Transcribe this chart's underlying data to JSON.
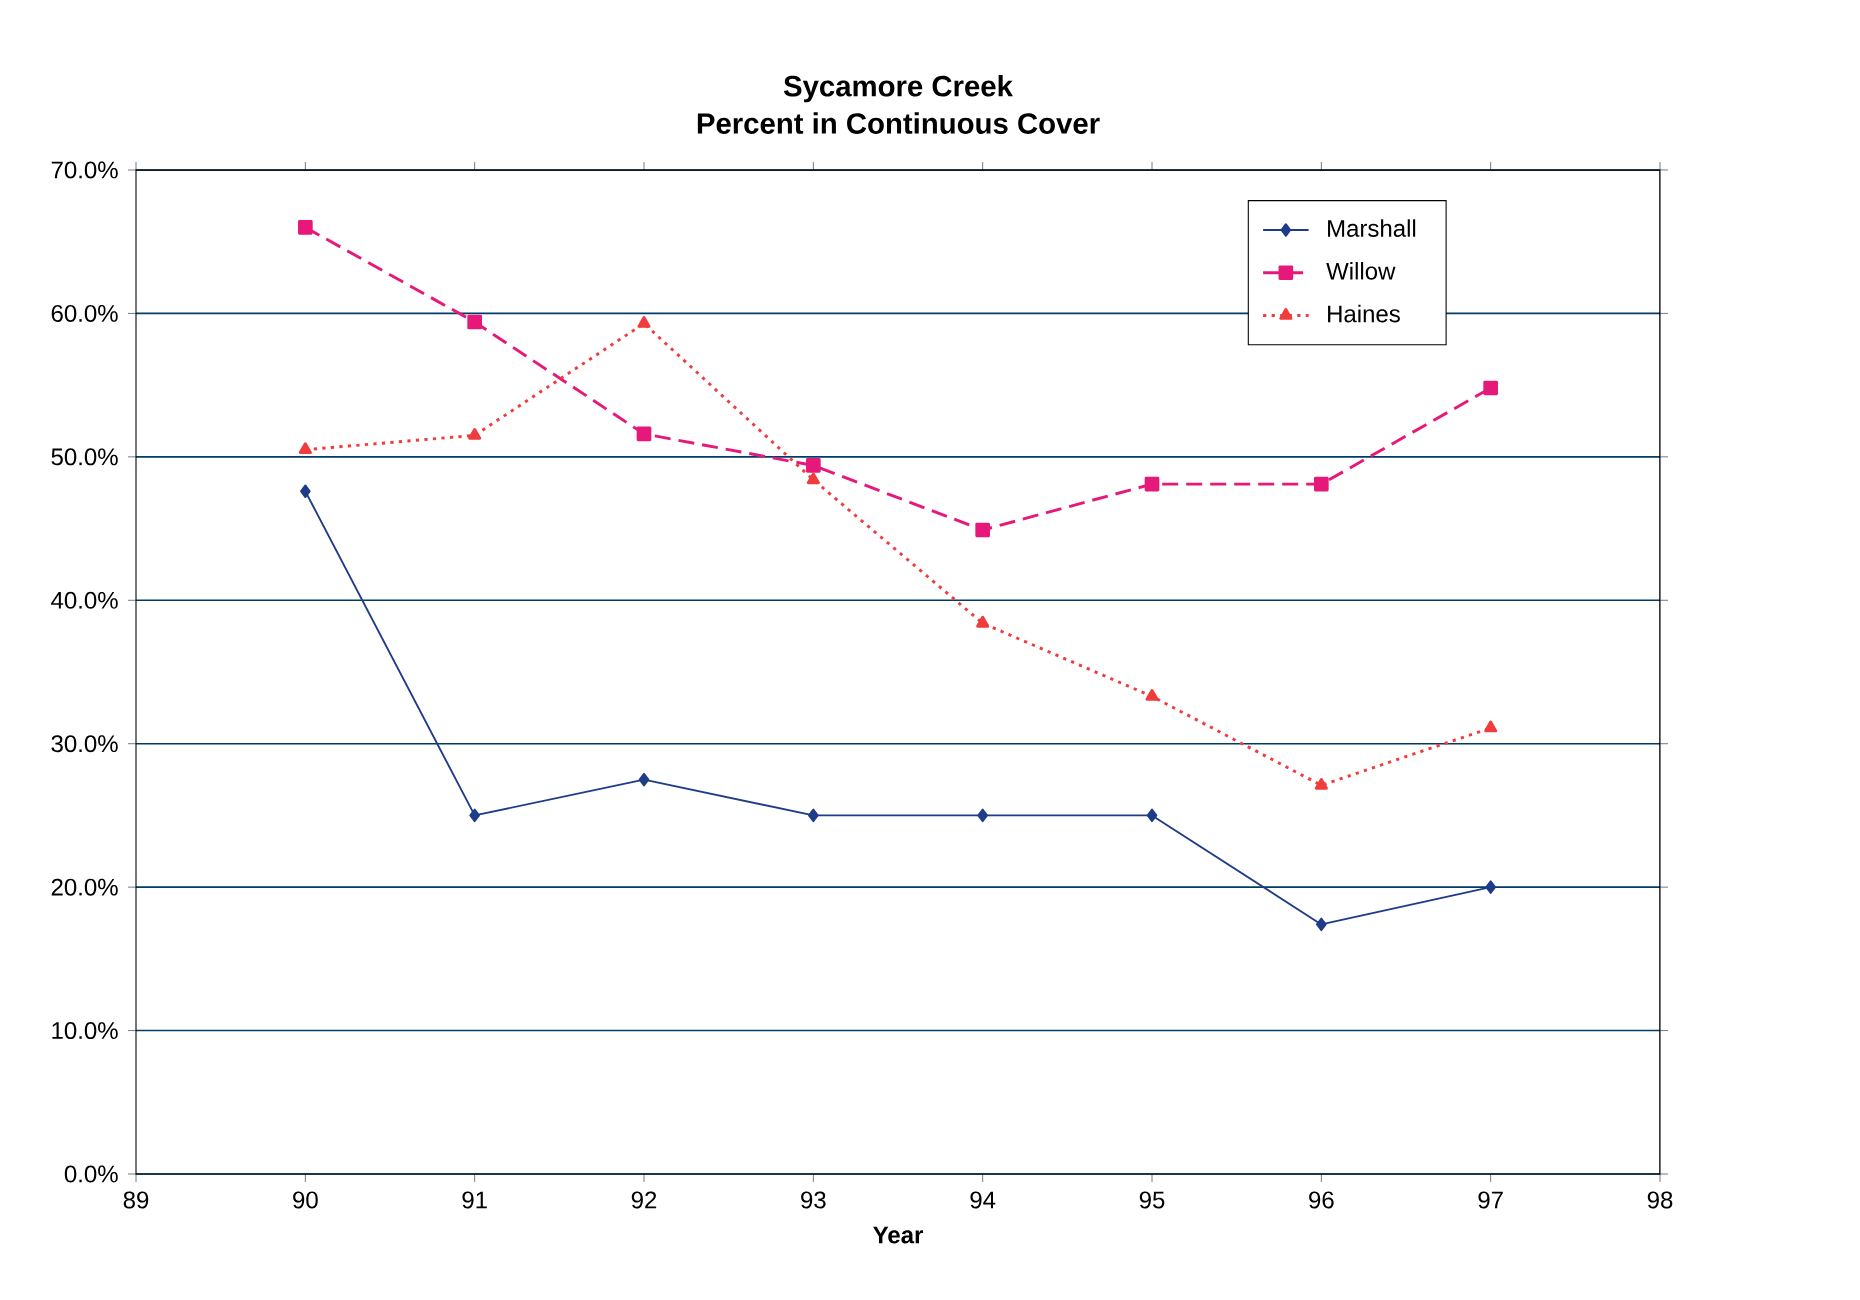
{
  "chart_data": {
    "type": "line",
    "title": "Sycamore Creek",
    "subtitle": "Percent in Continuous Cover",
    "xlabel": "Year",
    "x": [
      90,
      91,
      92,
      93,
      94,
      95,
      96,
      97
    ],
    "series": [
      {
        "name": "Marshall",
        "color": "#1f3c88",
        "marker": "diamond",
        "line_style": "solid",
        "values": [
          47.6,
          25.0,
          27.5,
          25.0,
          25.0,
          25.0,
          17.4,
          20.0
        ]
      },
      {
        "name": "Willow",
        "color": "#e6197a",
        "marker": "square",
        "line_style": "dashed",
        "values": [
          66.0,
          59.4,
          51.6,
          49.4,
          44.9,
          48.1,
          48.1,
          54.8
        ]
      },
      {
        "name": "Haines",
        "color": "#f03c3c",
        "marker": "triangle",
        "line_style": "dotted",
        "values": [
          50.5,
          51.5,
          59.3,
          48.4,
          38.4,
          33.3,
          27.1,
          31.1
        ]
      }
    ],
    "xlim": [
      89,
      98
    ],
    "xticks": [
      89,
      90,
      91,
      92,
      93,
      94,
      95,
      96,
      97,
      98
    ],
    "ylim": [
      0,
      70
    ],
    "yticks": [
      {
        "value": 0,
        "label": "0.0%"
      },
      {
        "value": 10,
        "label": "10.0%"
      },
      {
        "value": 20,
        "label": "20.0%"
      },
      {
        "value": 30,
        "label": "30.0%"
      },
      {
        "value": 40,
        "label": "40.0%"
      },
      {
        "value": 50,
        "label": "50.0%"
      },
      {
        "value": 60,
        "label": "60.0%"
      },
      {
        "value": 70,
        "label": "70.0%"
      }
    ],
    "grid": "y",
    "legend": "top right"
  }
}
